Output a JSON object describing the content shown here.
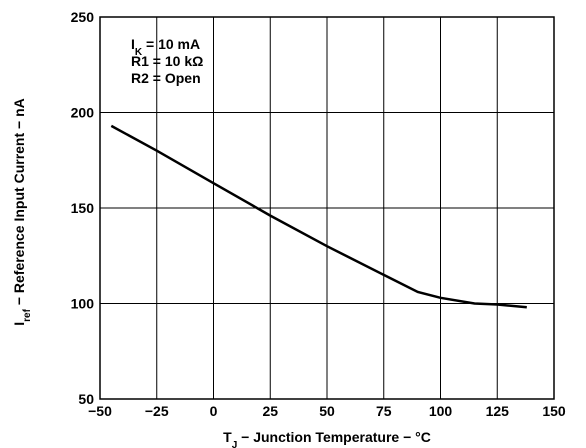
{
  "chart_data": {
    "type": "line",
    "title": "",
    "xlabel": {
      "main": "T",
      "sub": "J",
      "rest": " − Junction Temperature − °C"
    },
    "ylabel": {
      "main": "I",
      "sub": "ref",
      "rest": " − Reference Input Current − nA"
    },
    "xlim": [
      -50,
      150
    ],
    "ylim": [
      50,
      250
    ],
    "x_ticks": [
      -50,
      -25,
      0,
      25,
      50,
      75,
      100,
      125,
      150
    ],
    "x_tick_labels": [
      "−50",
      "−25",
      "0",
      "25",
      "50",
      "75",
      "100",
      "125",
      "150"
    ],
    "y_ticks": [
      50,
      100,
      150,
      200,
      250
    ],
    "y_tick_labels": [
      "50",
      "100",
      "150",
      "200",
      "250"
    ],
    "grid": true,
    "annotation": [
      {
        "main": "I",
        "sub": "K",
        "rest": " = 10 mA"
      },
      {
        "main": "R1 = 10 kΩ",
        "sub": "",
        "rest": ""
      },
      {
        "main": "R2 = Open",
        "sub": "",
        "rest": ""
      }
    ],
    "series": [
      {
        "x": [
          -45,
          -25,
          0,
          25,
          50,
          75,
          90,
          100,
          115,
          125,
          138
        ],
        "y": [
          193,
          180,
          163,
          146,
          130,
          115,
          106,
          103,
          100,
          99.5,
          98
        ]
      }
    ]
  },
  "colors": {
    "line": "#000000",
    "grid": "#000000",
    "background": "#ffffff"
  }
}
